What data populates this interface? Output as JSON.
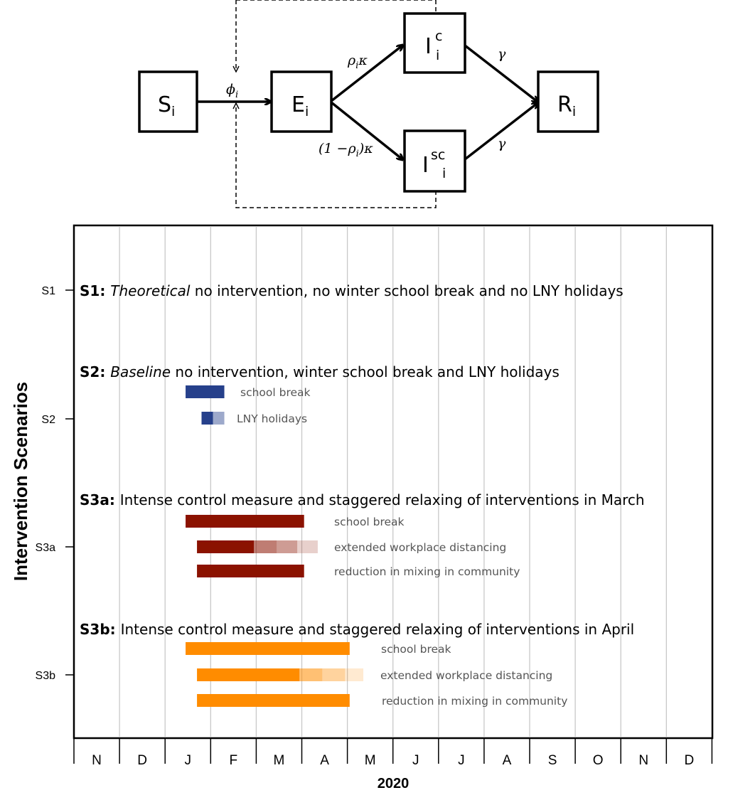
{
  "compartments": {
    "s": {
      "main": "S",
      "sub": "i",
      "sup": ""
    },
    "e": {
      "main": "E",
      "sub": "i",
      "sup": ""
    },
    "ic": {
      "main": "I",
      "sub": "i",
      "sup": "c"
    },
    "isc": {
      "main": "I",
      "sub": "i",
      "sup": "sc"
    },
    "r": {
      "main": "R",
      "sub": "i",
      "sup": ""
    }
  },
  "rates": {
    "phi": "ϕ",
    "phi_sub": "i",
    "rho_kappa": "ρ",
    "rho_kappa_sub": "i",
    "rho_kappa_tail": "κ",
    "one_minus_head": "(1 −ρ",
    "one_minus_sub": "i",
    "one_minus_tail": ")κ",
    "gamma_top": "γ",
    "gamma_bottom": "γ"
  },
  "timeline": {
    "y_axis_label": "Intervention Scenarios",
    "x_axis_label": "2020",
    "months": [
      "N",
      "D",
      "J",
      "F",
      "M",
      "A",
      "M",
      "J",
      "J",
      "A",
      "S",
      "O",
      "N",
      "D"
    ],
    "y_ticks": [
      "S1",
      "S2",
      "S3a",
      "S3b"
    ],
    "scenarios": [
      {
        "id": "S1",
        "prefix": "S1:",
        "emph": "Theoretical",
        "rest": " no intervention, no winter school break and no LNY holidays",
        "bars": []
      },
      {
        "id": "S2",
        "prefix": "S2:",
        "emph": "Baseline",
        "rest": " no intervention, winter school break and LNY holidays",
        "color": "#26408b",
        "bars": [
          {
            "label": "school break",
            "start": 2.45,
            "end": 3.3,
            "fades": []
          },
          {
            "label": "LNY holidays",
            "start": 2.8,
            "end": 3.05,
            "fades": [
              {
                "start": 3.05,
                "end": 3.3,
                "opacity": 0.45
              }
            ]
          }
        ]
      },
      {
        "id": "S3a",
        "prefix": "S3a:",
        "emph": "",
        "rest": " Intense control measure and staggered relaxing of interventions in March",
        "color": "#8b1200",
        "bars": [
          {
            "label": "school break",
            "start": 2.45,
            "end": 5.05,
            "fades": []
          },
          {
            "label": "extended workplace distancing",
            "start": 2.7,
            "end": 3.95,
            "fades": [
              {
                "start": 3.95,
                "end": 4.45,
                "opacity": 0.55
              },
              {
                "start": 4.45,
                "end": 4.9,
                "opacity": 0.42
              },
              {
                "start": 4.9,
                "end": 5.35,
                "opacity": 0.2
              }
            ]
          },
          {
            "label": "reduction in mixing in community",
            "start": 2.7,
            "end": 5.05,
            "fades": []
          }
        ]
      },
      {
        "id": "S3b",
        "prefix": "S3b:",
        "emph": "",
        "rest": " Intense control measure and staggered relaxing of interventions in April",
        "color": "#ff8c00",
        "bars": [
          {
            "label": "school break",
            "start": 2.45,
            "end": 6.05,
            "fades": []
          },
          {
            "label": "extended workplace distancing",
            "start": 2.7,
            "end": 4.95,
            "fades": [
              {
                "start": 4.95,
                "end": 5.45,
                "opacity": 0.55
              },
              {
                "start": 5.45,
                "end": 5.95,
                "opacity": 0.38
              },
              {
                "start": 5.95,
                "end": 6.35,
                "opacity": 0.18
              }
            ]
          },
          {
            "label": "reduction in mixing in community",
            "start": 2.7,
            "end": 6.05,
            "fades": []
          }
        ]
      }
    ]
  }
}
